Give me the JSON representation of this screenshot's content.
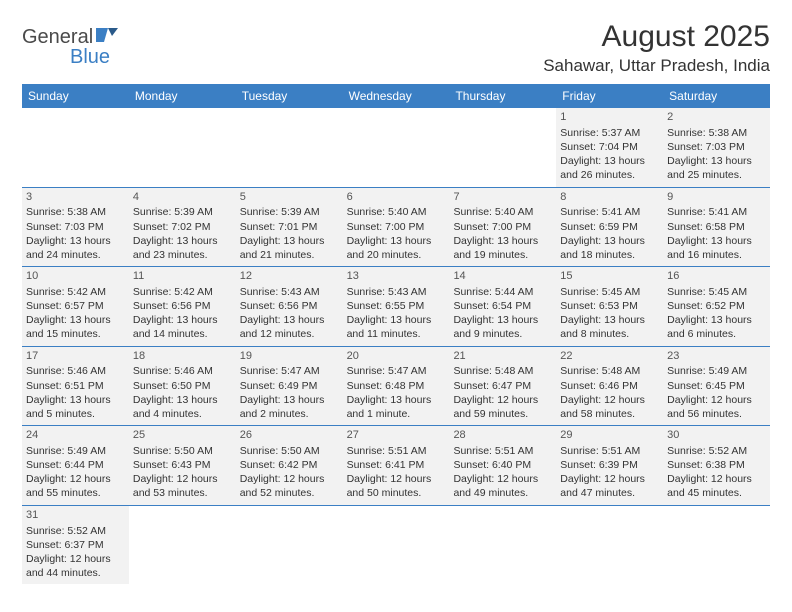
{
  "brand": {
    "part1": "General",
    "part2": "Blue"
  },
  "title": "August 2025",
  "location": "Sahawar, Uttar Pradesh, India",
  "colors": {
    "header_bg": "#3b7fc4",
    "cell_bg": "#f2f2f2",
    "page_bg": "#ffffff",
    "text": "#333333"
  },
  "dayNames": [
    "Sunday",
    "Monday",
    "Tuesday",
    "Wednesday",
    "Thursday",
    "Friday",
    "Saturday"
  ],
  "weeks": [
    [
      null,
      null,
      null,
      null,
      null,
      {
        "n": "1",
        "sr": "Sunrise: 5:37 AM",
        "ss": "Sunset: 7:04 PM",
        "d1": "Daylight: 13 hours",
        "d2": "and 26 minutes."
      },
      {
        "n": "2",
        "sr": "Sunrise: 5:38 AM",
        "ss": "Sunset: 7:03 PM",
        "d1": "Daylight: 13 hours",
        "d2": "and 25 minutes."
      }
    ],
    [
      {
        "n": "3",
        "sr": "Sunrise: 5:38 AM",
        "ss": "Sunset: 7:03 PM",
        "d1": "Daylight: 13 hours",
        "d2": "and 24 minutes."
      },
      {
        "n": "4",
        "sr": "Sunrise: 5:39 AM",
        "ss": "Sunset: 7:02 PM",
        "d1": "Daylight: 13 hours",
        "d2": "and 23 minutes."
      },
      {
        "n": "5",
        "sr": "Sunrise: 5:39 AM",
        "ss": "Sunset: 7:01 PM",
        "d1": "Daylight: 13 hours",
        "d2": "and 21 minutes."
      },
      {
        "n": "6",
        "sr": "Sunrise: 5:40 AM",
        "ss": "Sunset: 7:00 PM",
        "d1": "Daylight: 13 hours",
        "d2": "and 20 minutes."
      },
      {
        "n": "7",
        "sr": "Sunrise: 5:40 AM",
        "ss": "Sunset: 7:00 PM",
        "d1": "Daylight: 13 hours",
        "d2": "and 19 minutes."
      },
      {
        "n": "8",
        "sr": "Sunrise: 5:41 AM",
        "ss": "Sunset: 6:59 PM",
        "d1": "Daylight: 13 hours",
        "d2": "and 18 minutes."
      },
      {
        "n": "9",
        "sr": "Sunrise: 5:41 AM",
        "ss": "Sunset: 6:58 PM",
        "d1": "Daylight: 13 hours",
        "d2": "and 16 minutes."
      }
    ],
    [
      {
        "n": "10",
        "sr": "Sunrise: 5:42 AM",
        "ss": "Sunset: 6:57 PM",
        "d1": "Daylight: 13 hours",
        "d2": "and 15 minutes."
      },
      {
        "n": "11",
        "sr": "Sunrise: 5:42 AM",
        "ss": "Sunset: 6:56 PM",
        "d1": "Daylight: 13 hours",
        "d2": "and 14 minutes."
      },
      {
        "n": "12",
        "sr": "Sunrise: 5:43 AM",
        "ss": "Sunset: 6:56 PM",
        "d1": "Daylight: 13 hours",
        "d2": "and 12 minutes."
      },
      {
        "n": "13",
        "sr": "Sunrise: 5:43 AM",
        "ss": "Sunset: 6:55 PM",
        "d1": "Daylight: 13 hours",
        "d2": "and 11 minutes."
      },
      {
        "n": "14",
        "sr": "Sunrise: 5:44 AM",
        "ss": "Sunset: 6:54 PM",
        "d1": "Daylight: 13 hours",
        "d2": "and 9 minutes."
      },
      {
        "n": "15",
        "sr": "Sunrise: 5:45 AM",
        "ss": "Sunset: 6:53 PM",
        "d1": "Daylight: 13 hours",
        "d2": "and 8 minutes."
      },
      {
        "n": "16",
        "sr": "Sunrise: 5:45 AM",
        "ss": "Sunset: 6:52 PM",
        "d1": "Daylight: 13 hours",
        "d2": "and 6 minutes."
      }
    ],
    [
      {
        "n": "17",
        "sr": "Sunrise: 5:46 AM",
        "ss": "Sunset: 6:51 PM",
        "d1": "Daylight: 13 hours",
        "d2": "and 5 minutes."
      },
      {
        "n": "18",
        "sr": "Sunrise: 5:46 AM",
        "ss": "Sunset: 6:50 PM",
        "d1": "Daylight: 13 hours",
        "d2": "and 4 minutes."
      },
      {
        "n": "19",
        "sr": "Sunrise: 5:47 AM",
        "ss": "Sunset: 6:49 PM",
        "d1": "Daylight: 13 hours",
        "d2": "and 2 minutes."
      },
      {
        "n": "20",
        "sr": "Sunrise: 5:47 AM",
        "ss": "Sunset: 6:48 PM",
        "d1": "Daylight: 13 hours",
        "d2": "and 1 minute."
      },
      {
        "n": "21",
        "sr": "Sunrise: 5:48 AM",
        "ss": "Sunset: 6:47 PM",
        "d1": "Daylight: 12 hours",
        "d2": "and 59 minutes."
      },
      {
        "n": "22",
        "sr": "Sunrise: 5:48 AM",
        "ss": "Sunset: 6:46 PM",
        "d1": "Daylight: 12 hours",
        "d2": "and 58 minutes."
      },
      {
        "n": "23",
        "sr": "Sunrise: 5:49 AM",
        "ss": "Sunset: 6:45 PM",
        "d1": "Daylight: 12 hours",
        "d2": "and 56 minutes."
      }
    ],
    [
      {
        "n": "24",
        "sr": "Sunrise: 5:49 AM",
        "ss": "Sunset: 6:44 PM",
        "d1": "Daylight: 12 hours",
        "d2": "and 55 minutes."
      },
      {
        "n": "25",
        "sr": "Sunrise: 5:50 AM",
        "ss": "Sunset: 6:43 PM",
        "d1": "Daylight: 12 hours",
        "d2": "and 53 minutes."
      },
      {
        "n": "26",
        "sr": "Sunrise: 5:50 AM",
        "ss": "Sunset: 6:42 PM",
        "d1": "Daylight: 12 hours",
        "d2": "and 52 minutes."
      },
      {
        "n": "27",
        "sr": "Sunrise: 5:51 AM",
        "ss": "Sunset: 6:41 PM",
        "d1": "Daylight: 12 hours",
        "d2": "and 50 minutes."
      },
      {
        "n": "28",
        "sr": "Sunrise: 5:51 AM",
        "ss": "Sunset: 6:40 PM",
        "d1": "Daylight: 12 hours",
        "d2": "and 49 minutes."
      },
      {
        "n": "29",
        "sr": "Sunrise: 5:51 AM",
        "ss": "Sunset: 6:39 PM",
        "d1": "Daylight: 12 hours",
        "d2": "and 47 minutes."
      },
      {
        "n": "30",
        "sr": "Sunrise: 5:52 AM",
        "ss": "Sunset: 6:38 PM",
        "d1": "Daylight: 12 hours",
        "d2": "and 45 minutes."
      }
    ],
    [
      {
        "n": "31",
        "sr": "Sunrise: 5:52 AM",
        "ss": "Sunset: 6:37 PM",
        "d1": "Daylight: 12 hours",
        "d2": "and 44 minutes."
      },
      null,
      null,
      null,
      null,
      null,
      null
    ]
  ]
}
